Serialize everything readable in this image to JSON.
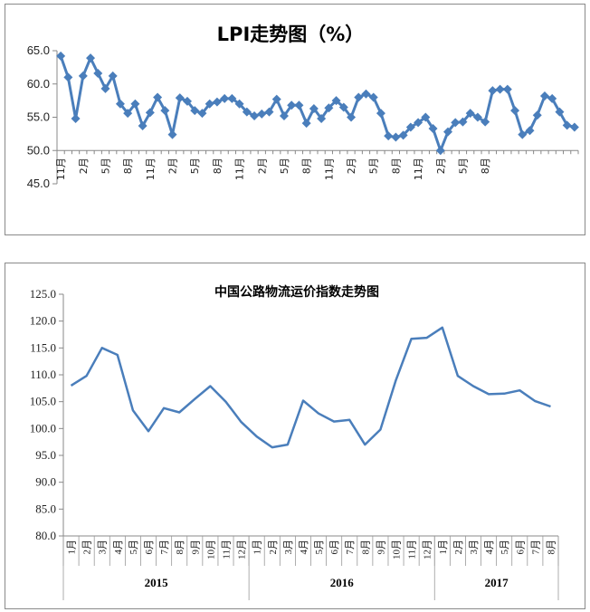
{
  "chart_data": [
    {
      "type": "line",
      "title": "LPI走势图（%）",
      "ylim": [
        45,
        65
      ],
      "yticks": [
        "45.0",
        "50.0",
        "55.0",
        "60.0",
        "65.0"
      ],
      "xtick_labels": [
        "11月",
        "2月",
        "5月",
        "8月",
        "11月",
        "2月",
        "5月",
        "8月",
        "11月",
        "2月",
        "5月",
        "8月",
        "11月",
        "2月",
        "5月",
        "8月",
        "11月",
        "2月",
        "5月",
        "8月"
      ],
      "line_color": "#4a7ebb",
      "marker": "diamond",
      "values": [
        64.2,
        61.0,
        54.8,
        61.2,
        63.9,
        61.6,
        59.3,
        61.2,
        57.0,
        55.6,
        57.0,
        53.7,
        55.7,
        58.0,
        56.0,
        52.4,
        57.9,
        57.4,
        56.0,
        55.6,
        57.0,
        57.3,
        57.8,
        57.8,
        57.0,
        55.8,
        55.2,
        55.5,
        55.8,
        57.7,
        55.2,
        56.8,
        56.8,
        54.1,
        56.3,
        54.8,
        56.4,
        57.5,
        56.5,
        55.0,
        58.0,
        58.5,
        58.0,
        55.6,
        52.2,
        52.0,
        52.3,
        53.5,
        54.2,
        55.0,
        53.3,
        50.0,
        52.8,
        54.2,
        54.3,
        55.6,
        55.0,
        54.3,
        59.0,
        59.2,
        59.2,
        56.0,
        52.4,
        53.0,
        55.3,
        58.2,
        57.8,
        55.8,
        53.8,
        53.5
      ]
    },
    {
      "type": "line",
      "title": "中国公路物流运价指数走势图",
      "ylim": [
        80,
        125
      ],
      "yticks": [
        "80.0",
        "85.0",
        "90.0",
        "95.0",
        "100.0",
        "105.0",
        "110.0",
        "115.0",
        "120.0",
        "125.0"
      ],
      "categories": [
        "1月",
        "2月",
        "3月",
        "4月",
        "5月",
        "6月",
        "7月",
        "8月",
        "9月",
        "10月",
        "11月",
        "12月",
        "1月",
        "2月",
        "3月",
        "4月",
        "5月",
        "6月",
        "7月",
        "8月",
        "9月",
        "10月",
        "11月",
        "12月",
        "1月",
        "2月",
        "3月",
        "4月",
        "5月",
        "6月",
        "7月",
        "8月"
      ],
      "years": [
        "2015",
        "2016",
        "2017"
      ],
      "line_color": "#4a7ebb",
      "values": [
        108.0,
        109.8,
        115.0,
        113.7,
        103.4,
        99.5,
        103.8,
        103.0,
        105.5,
        107.9,
        105.0,
        101.2,
        98.5,
        96.5,
        97.0,
        105.2,
        102.8,
        101.3,
        101.6,
        97.0,
        99.8,
        109.0,
        116.7,
        116.9,
        118.8,
        109.8,
        107.9,
        106.4,
        106.5,
        107.1,
        105.1,
        104.1
      ]
    }
  ]
}
